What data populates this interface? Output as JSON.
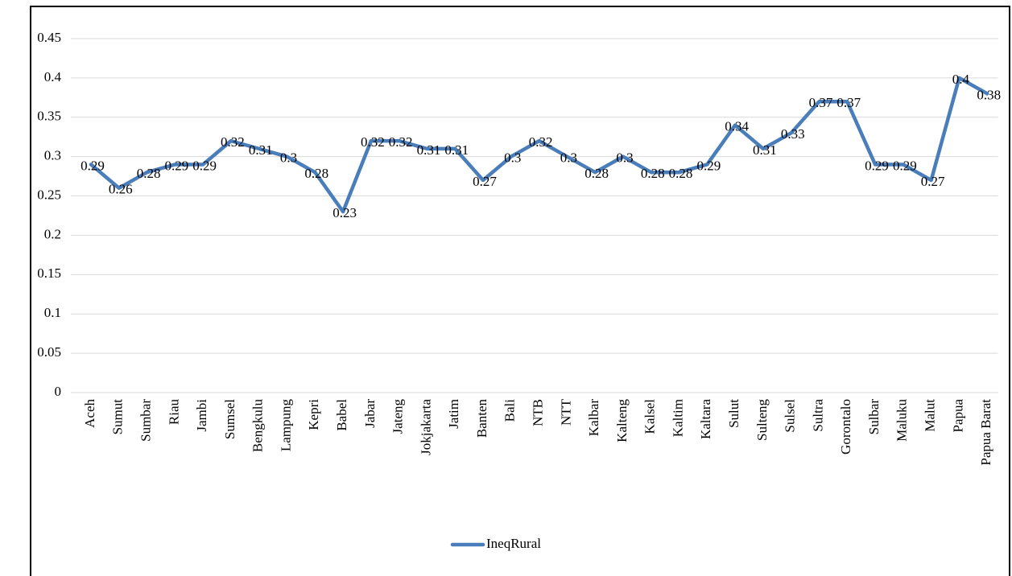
{
  "chart_data": {
    "type": "line",
    "categories": [
      "Aceh",
      "Sumut",
      "Sumbar",
      "Riau",
      "Jambi",
      "Sumsel",
      "Bengkulu",
      "Lampung",
      "Kepri",
      "Babel",
      "Jabar",
      "Jateng",
      "Jokjakarta",
      "Jatim",
      "Banten",
      "Bali",
      "NTB",
      "NTT",
      "Kalbar",
      "Kalteng",
      "Kalsel",
      "Kaltim",
      "Kaltara",
      "Sulut",
      "Sulteng",
      "Sulsel",
      "Sultra",
      "Gorontalo",
      "Sulbar",
      "Maluku",
      "Malut",
      "Papua",
      "Papua Barat"
    ],
    "series": [
      {
        "name": "IneqRural",
        "color": "#4a7ebb",
        "values": [
          0.29,
          0.26,
          0.28,
          0.29,
          0.29,
          0.32,
          0.31,
          0.3,
          0.28,
          0.23,
          0.32,
          0.32,
          0.31,
          0.31,
          0.27,
          0.3,
          0.32,
          0.3,
          0.28,
          0.3,
          0.28,
          0.28,
          0.29,
          0.34,
          0.31,
          0.33,
          0.37,
          0.37,
          0.29,
          0.29,
          0.27,
          0.4,
          0.38
        ]
      }
    ],
    "ylim": [
      0,
      0.45
    ],
    "yticks": [
      0,
      0.05,
      0.1,
      0.15,
      0.2,
      0.25,
      0.3,
      0.35,
      0.4,
      0.45
    ],
    "grid": true,
    "legend": "bottom"
  }
}
